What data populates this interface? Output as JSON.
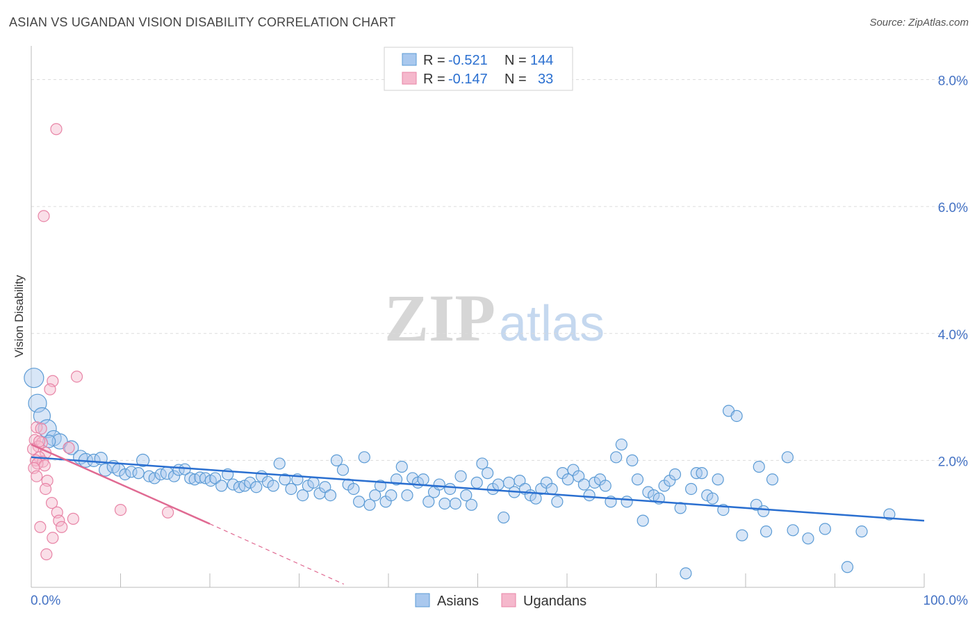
{
  "header": {
    "title": "ASIAN VS UGANDAN VISION DISABILITY CORRELATION CHART",
    "source": "Source: ZipAtlas.com"
  },
  "watermark": {
    "zip": "ZIP",
    "atlas": "atlas"
  },
  "colors": {
    "asian": "#5b9bd5",
    "asian_fill": "#a9c8ee",
    "asian_line": "#2a6fd0",
    "ugandan": "#e884a6",
    "ugandan_fill": "#f5b8cc",
    "ugandan_line": "#e06a92",
    "axis_label": "#4472c4"
  },
  "stats": {
    "r_label": "R =",
    "n_label": "N =",
    "asian": {
      "r": "-0.521",
      "n": "144"
    },
    "ugandan": {
      "r": "-0.147",
      "n": "33"
    }
  },
  "chart_data": {
    "type": "scatter",
    "title": "ASIAN VS UGANDAN VISION DISABILITY CORRELATION CHART",
    "xlabel": "",
    "ylabel": "Vision Disability",
    "xlim": [
      0,
      100
    ],
    "ylim": [
      0,
      8.4
    ],
    "y_ticks": [
      2,
      4,
      6,
      8
    ],
    "y_tick_labels": [
      "2.0%",
      "4.0%",
      "6.0%",
      "8.0%"
    ],
    "x_tick_labels": [
      "0.0%",
      "100.0%"
    ],
    "grid": true,
    "legend": "bottom-center",
    "series": [
      {
        "name": "Asians",
        "trend": {
          "x0": 0,
          "y0": 2.05,
          "x1": 100,
          "y1": 1.05
        },
        "points": [
          [
            0.3,
            3.3,
            14
          ],
          [
            0.7,
            2.9,
            13
          ],
          [
            1.2,
            2.7,
            12
          ],
          [
            1.8,
            2.5,
            13
          ],
          [
            2.5,
            2.35,
            11
          ],
          [
            3.2,
            2.3,
            11
          ],
          [
            4.5,
            2.2,
            10
          ],
          [
            5.5,
            2.05,
            10
          ],
          [
            6.1,
            2.0,
            10
          ],
          [
            7.0,
            2.0,
            9
          ],
          [
            7.8,
            2.03,
            9
          ],
          [
            8.3,
            1.85,
            9
          ],
          [
            9.2,
            1.9,
            9
          ],
          [
            9.8,
            1.85,
            9
          ],
          [
            10.5,
            1.78,
            8
          ],
          [
            11.2,
            1.82,
            8
          ],
          [
            12.0,
            1.8,
            8
          ],
          [
            12.5,
            2.0,
            9
          ],
          [
            13.2,
            1.75,
            8
          ],
          [
            13.8,
            1.72,
            8
          ],
          [
            14.5,
            1.78,
            8
          ],
          [
            15.2,
            1.8,
            9
          ],
          [
            16.0,
            1.75,
            8
          ],
          [
            16.5,
            1.85,
            8
          ],
          [
            17.2,
            1.86,
            8
          ],
          [
            17.8,
            1.72,
            8
          ],
          [
            18.3,
            1.7,
            8
          ],
          [
            18.9,
            1.73,
            8
          ],
          [
            19.5,
            1.72,
            8
          ],
          [
            20.1,
            1.68,
            8
          ],
          [
            20.6,
            1.72,
            8
          ],
          [
            21.3,
            1.6,
            8
          ],
          [
            22.0,
            1.78,
            8
          ],
          [
            22.6,
            1.62,
            8
          ],
          [
            23.3,
            1.58,
            8
          ],
          [
            23.9,
            1.6,
            8
          ],
          [
            24.5,
            1.65,
            8
          ],
          [
            25.2,
            1.58,
            8
          ],
          [
            25.8,
            1.75,
            8
          ],
          [
            26.5,
            1.66,
            8
          ],
          [
            27.1,
            1.6,
            8
          ],
          [
            27.8,
            1.95,
            8
          ],
          [
            28.4,
            1.7,
            8
          ],
          [
            29.1,
            1.55,
            8
          ],
          [
            29.8,
            1.7,
            8
          ],
          [
            30.4,
            1.45,
            8
          ],
          [
            31.0,
            1.6,
            8
          ],
          [
            31.6,
            1.65,
            8
          ],
          [
            32.3,
            1.48,
            8
          ],
          [
            32.9,
            1.58,
            8
          ],
          [
            33.5,
            1.45,
            8
          ],
          [
            34.2,
            2.0,
            8
          ],
          [
            34.9,
            1.85,
            8
          ],
          [
            35.5,
            1.62,
            8
          ],
          [
            36.1,
            1.55,
            8
          ],
          [
            36.7,
            1.35,
            8
          ],
          [
            37.3,
            2.05,
            8
          ],
          [
            37.9,
            1.3,
            8
          ],
          [
            38.5,
            1.45,
            8
          ],
          [
            39.1,
            1.6,
            8
          ],
          [
            39.7,
            1.35,
            8
          ],
          [
            40.3,
            1.45,
            8
          ],
          [
            40.9,
            1.7,
            8
          ],
          [
            41.5,
            1.9,
            8
          ],
          [
            42.1,
            1.45,
            8
          ],
          [
            42.7,
            1.72,
            8
          ],
          [
            43.3,
            1.65,
            8
          ],
          [
            43.9,
            1.7,
            8
          ],
          [
            44.5,
            1.35,
            8
          ],
          [
            45.1,
            1.5,
            8
          ],
          [
            45.7,
            1.62,
            8
          ],
          [
            46.3,
            1.32,
            8
          ],
          [
            46.9,
            1.55,
            8
          ],
          [
            47.5,
            1.32,
            8
          ],
          [
            48.1,
            1.75,
            8
          ],
          [
            48.7,
            1.45,
            8
          ],
          [
            49.3,
            1.3,
            8
          ],
          [
            49.9,
            1.65,
            8
          ],
          [
            50.5,
            1.95,
            8
          ],
          [
            51.1,
            1.8,
            8
          ],
          [
            51.7,
            1.55,
            8
          ],
          [
            52.3,
            1.62,
            8
          ],
          [
            52.9,
            1.1,
            8
          ],
          [
            53.5,
            1.65,
            8
          ],
          [
            54.1,
            1.5,
            8
          ],
          [
            54.7,
            1.68,
            8
          ],
          [
            55.3,
            1.55,
            8
          ],
          [
            55.9,
            1.45,
            8
          ],
          [
            56.5,
            1.4,
            8
          ],
          [
            57.1,
            1.55,
            8
          ],
          [
            57.7,
            1.65,
            8
          ],
          [
            58.3,
            1.55,
            8
          ],
          [
            58.9,
            1.35,
            8
          ],
          [
            59.5,
            1.8,
            8
          ],
          [
            60.1,
            1.7,
            8
          ],
          [
            60.7,
            1.85,
            8
          ],
          [
            61.3,
            1.75,
            8
          ],
          [
            61.9,
            1.62,
            8
          ],
          [
            62.5,
            1.45,
            8
          ],
          [
            63.1,
            1.65,
            8
          ],
          [
            63.7,
            1.7,
            8
          ],
          [
            64.3,
            1.6,
            8
          ],
          [
            64.9,
            1.35,
            8
          ],
          [
            65.5,
            2.05,
            8
          ],
          [
            66.1,
            2.25,
            8
          ],
          [
            66.7,
            1.35,
            8
          ],
          [
            67.3,
            2.0,
            8
          ],
          [
            67.9,
            1.7,
            8
          ],
          [
            68.5,
            1.05,
            8
          ],
          [
            69.1,
            1.5,
            8
          ],
          [
            69.7,
            1.45,
            8
          ],
          [
            70.3,
            1.4,
            8
          ],
          [
            70.9,
            1.6,
            8
          ],
          [
            71.5,
            1.68,
            8
          ],
          [
            72.1,
            1.78,
            8
          ],
          [
            72.7,
            1.25,
            8
          ],
          [
            73.3,
            0.22,
            8
          ],
          [
            73.9,
            1.55,
            8
          ],
          [
            74.5,
            1.8,
            8
          ],
          [
            75.1,
            1.8,
            8
          ],
          [
            75.7,
            1.45,
            8
          ],
          [
            76.3,
            1.4,
            8
          ],
          [
            76.9,
            1.7,
            8
          ],
          [
            77.5,
            1.22,
            8
          ],
          [
            78.1,
            2.78,
            8
          ],
          [
            79.0,
            2.7,
            8
          ],
          [
            79.6,
            0.82,
            8
          ],
          [
            81.2,
            1.3,
            8
          ],
          [
            81.5,
            1.9,
            8
          ],
          [
            82.0,
            1.2,
            8
          ],
          [
            82.3,
            0.88,
            8
          ],
          [
            83.0,
            1.7,
            8
          ],
          [
            84.7,
            2.05,
            8
          ],
          [
            85.3,
            0.9,
            8
          ],
          [
            87.0,
            0.77,
            8
          ],
          [
            88.9,
            0.92,
            8
          ],
          [
            91.4,
            0.32,
            8
          ],
          [
            93.0,
            0.88,
            8
          ],
          [
            96.1,
            1.15,
            8
          ],
          [
            2.0,
            2.3,
            9
          ]
        ]
      },
      {
        "name": "Ugandans",
        "trend": {
          "x0": 0,
          "y0": 2.25,
          "x1": 20,
          "y1": 1.0
        },
        "trend_dashed": {
          "x0": 20,
          "y0": 1.0,
          "x1": 35,
          "y1": 0.05
        },
        "points": [
          [
            2.8,
            7.22,
            8
          ],
          [
            1.4,
            5.85,
            8
          ],
          [
            5.1,
            3.32,
            8
          ],
          [
            2.4,
            3.25,
            8
          ],
          [
            2.1,
            3.12,
            8
          ],
          [
            0.6,
            2.52,
            8
          ],
          [
            1.1,
            2.5,
            8
          ],
          [
            0.4,
            2.32,
            8
          ],
          [
            1.2,
            2.28,
            8
          ],
          [
            0.8,
            2.22,
            8
          ],
          [
            0.2,
            2.18,
            8
          ],
          [
            1.6,
            2.12,
            8
          ],
          [
            0.9,
            2.05,
            8
          ],
          [
            0.5,
            2.0,
            8
          ],
          [
            1.3,
            1.98,
            8
          ],
          [
            0.7,
            1.95,
            8
          ],
          [
            1.5,
            1.92,
            8
          ],
          [
            0.3,
            1.88,
            8
          ],
          [
            0.6,
            1.75,
            8
          ],
          [
            1.8,
            1.68,
            8
          ],
          [
            1.6,
            1.55,
            8
          ],
          [
            2.3,
            1.33,
            8
          ],
          [
            2.9,
            1.18,
            8
          ],
          [
            3.1,
            1.05,
            8
          ],
          [
            4.7,
            1.08,
            8
          ],
          [
            3.4,
            0.95,
            8
          ],
          [
            1.0,
            0.95,
            8
          ],
          [
            2.4,
            0.78,
            8
          ],
          [
            1.7,
            0.52,
            8
          ],
          [
            10.0,
            1.22,
            8
          ],
          [
            15.3,
            1.18,
            8
          ],
          [
            4.2,
            2.2,
            8
          ],
          [
            0.9,
            2.3,
            8
          ]
        ]
      }
    ]
  }
}
